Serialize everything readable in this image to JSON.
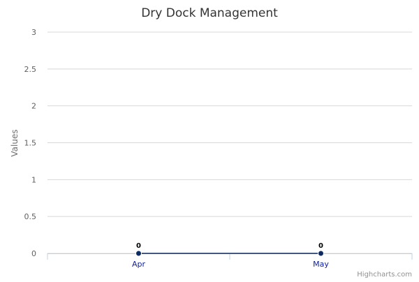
{
  "chart_data": {
    "type": "line",
    "title": "Dry Dock Management",
    "ylabel": "Values",
    "categories": [
      "Apr",
      "May"
    ],
    "series": [
      {
        "values": [
          0,
          0
        ],
        "color": "#0d2a63"
      }
    ],
    "ylim": [
      0,
      3
    ],
    "yticks": [
      "0",
      "0.5",
      "1",
      "1.5",
      "2",
      "2.5",
      "3"
    ],
    "grid": true,
    "legend": "none",
    "data_labels": true
  },
  "credits": "Highcharts.com",
  "colors": {
    "gridline": "#d8d8d8",
    "axis_line": "#c0d0e0",
    "xtick_text": "#0b1f9e"
  }
}
